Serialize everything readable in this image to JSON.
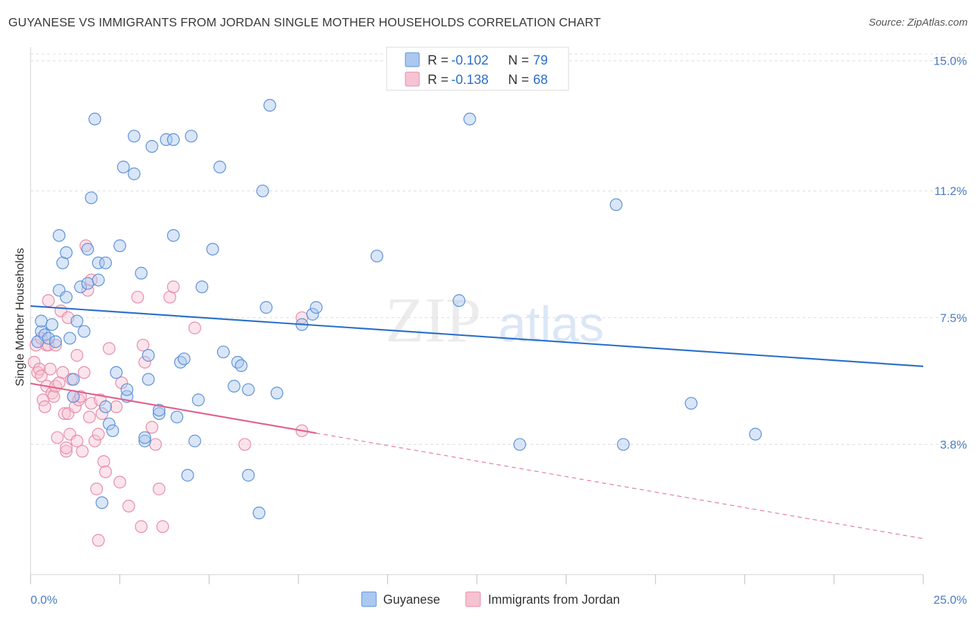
{
  "title": "GUYANESE VS IMMIGRANTS FROM JORDAN SINGLE MOTHER HOUSEHOLDS CORRELATION CHART",
  "source": "Source: ZipAtlas.com",
  "watermark": {
    "zip": "ZIP",
    "atlas": "atlas"
  },
  "colors": {
    "blue_fill": "#aac8f0",
    "blue_stroke": "#5b8fd6",
    "blue_line": "#2a6fc9",
    "pink_fill": "#f6c3d3",
    "pink_stroke": "#e68aa8",
    "pink_line": "#e0608a",
    "tick_text": "#4a7cc7",
    "grid": "#dcdcdc"
  },
  "legend": {
    "rows": [
      {
        "r_label": "R = ",
        "r_value": "-0.102",
        "n_label": "N = ",
        "n_value": "79",
        "series": "blue"
      },
      {
        "r_label": "R = ",
        "r_value": "-0.138",
        "n_label": "N = ",
        "n_value": "68",
        "series": "pink"
      }
    ]
  },
  "chart_data": {
    "type": "scatter",
    "title": "GUYANESE VS IMMIGRANTS FROM JORDAN SINGLE MOTHER HOUSEHOLDS CORRELATION CHART",
    "xlabel": "",
    "ylabel": "Single Mother Households",
    "xlim": [
      0,
      25
    ],
    "ylim": [
      0,
      15.6
    ],
    "x_tick_labels": [
      "0.0%",
      "25.0%"
    ],
    "y_ticks": [
      3.8,
      7.5,
      11.2,
      15.0
    ],
    "y_tick_labels": [
      "3.8%",
      "7.5%",
      "11.2%",
      "15.0%"
    ],
    "grid": true,
    "legend": [
      "Guyanese",
      "Immigrants from Jordan"
    ],
    "series": [
      {
        "name": "Guyanese",
        "color": "blue",
        "trend": {
          "x": [
            0,
            25
          ],
          "y": [
            7.84,
            6.08
          ],
          "dashed_from": null
        },
        "points": [
          [
            0.2,
            6.8
          ],
          [
            0.3,
            7.1
          ],
          [
            0.3,
            7.4
          ],
          [
            0.4,
            7.0
          ],
          [
            0.5,
            6.9
          ],
          [
            0.6,
            7.3
          ],
          [
            0.7,
            6.8
          ],
          [
            0.8,
            8.3
          ],
          [
            0.8,
            9.9
          ],
          [
            0.9,
            9.1
          ],
          [
            1.0,
            8.1
          ],
          [
            1.0,
            9.4
          ],
          [
            1.1,
            6.9
          ],
          [
            1.2,
            5.7
          ],
          [
            1.2,
            5.2
          ],
          [
            1.3,
            7.4
          ],
          [
            1.4,
            8.4
          ],
          [
            1.5,
            7.1
          ],
          [
            1.6,
            9.5
          ],
          [
            1.6,
            8.5
          ],
          [
            1.7,
            11.0
          ],
          [
            1.8,
            13.3
          ],
          [
            1.9,
            8.6
          ],
          [
            1.9,
            9.1
          ],
          [
            2.0,
            2.1
          ],
          [
            2.1,
            9.1
          ],
          [
            2.1,
            4.9
          ],
          [
            2.2,
            4.4
          ],
          [
            2.3,
            4.2
          ],
          [
            2.4,
            5.9
          ],
          [
            2.5,
            9.6
          ],
          [
            2.6,
            11.9
          ],
          [
            2.7,
            5.2
          ],
          [
            2.7,
            5.4
          ],
          [
            2.9,
            11.7
          ],
          [
            2.9,
            12.8
          ],
          [
            3.1,
            8.8
          ],
          [
            3.2,
            3.9
          ],
          [
            3.2,
            4.0
          ],
          [
            3.3,
            6.4
          ],
          [
            3.3,
            5.7
          ],
          [
            3.4,
            12.5
          ],
          [
            3.6,
            4.7
          ],
          [
            3.6,
            4.8
          ],
          [
            3.8,
            12.7
          ],
          [
            4.0,
            9.9
          ],
          [
            4.0,
            12.7
          ],
          [
            4.1,
            4.6
          ],
          [
            4.2,
            6.2
          ],
          [
            4.3,
            6.3
          ],
          [
            4.4,
            2.9
          ],
          [
            4.5,
            12.8
          ],
          [
            4.6,
            3.9
          ],
          [
            4.7,
            5.1
          ],
          [
            4.8,
            8.4
          ],
          [
            5.1,
            9.5
          ],
          [
            5.3,
            11.9
          ],
          [
            5.4,
            6.5
          ],
          [
            5.7,
            5.5
          ],
          [
            5.8,
            6.2
          ],
          [
            5.9,
            6.1
          ],
          [
            6.1,
            2.9
          ],
          [
            6.1,
            5.4
          ],
          [
            6.4,
            1.8
          ],
          [
            6.5,
            11.2
          ],
          [
            6.6,
            7.8
          ],
          [
            6.7,
            13.7
          ],
          [
            6.9,
            5.3
          ],
          [
            7.6,
            7.3
          ],
          [
            7.9,
            7.6
          ],
          [
            8.0,
            7.8
          ],
          [
            9.7,
            9.3
          ],
          [
            12.0,
            8.0
          ],
          [
            12.3,
            13.3
          ],
          [
            13.7,
            3.8
          ],
          [
            16.4,
            10.8
          ],
          [
            16.6,
            3.8
          ],
          [
            18.5,
            5.0
          ],
          [
            20.3,
            4.1
          ]
        ]
      },
      {
        "name": "Immigrants from Jordan",
        "color": "pink",
        "trend": {
          "x": [
            0,
            25
          ],
          "y": [
            5.58,
            1.05
          ],
          "dashed_from": 8.0
        },
        "points": [
          [
            0.1,
            6.2
          ],
          [
            0.15,
            6.7
          ],
          [
            0.2,
            5.9
          ],
          [
            0.25,
            6.0
          ],
          [
            0.3,
            6.9
          ],
          [
            0.3,
            5.8
          ],
          [
            0.35,
            5.1
          ],
          [
            0.4,
            4.9
          ],
          [
            0.45,
            6.7
          ],
          [
            0.45,
            5.5
          ],
          [
            0.5,
            8.0
          ],
          [
            0.5,
            6.7
          ],
          [
            0.55,
            6.0
          ],
          [
            0.6,
            5.3
          ],
          [
            0.65,
            5.2
          ],
          [
            0.7,
            6.7
          ],
          [
            0.7,
            5.5
          ],
          [
            0.75,
            4.0
          ],
          [
            0.8,
            5.6
          ],
          [
            0.85,
            7.7
          ],
          [
            0.9,
            5.9
          ],
          [
            0.95,
            4.7
          ],
          [
            1.0,
            3.6
          ],
          [
            1.0,
            3.7
          ],
          [
            1.05,
            7.5
          ],
          [
            1.05,
            4.7
          ],
          [
            1.1,
            4.1
          ],
          [
            1.15,
            5.7
          ],
          [
            1.2,
            5.2
          ],
          [
            1.25,
            4.9
          ],
          [
            1.3,
            3.9
          ],
          [
            1.3,
            6.4
          ],
          [
            1.35,
            5.1
          ],
          [
            1.4,
            5.2
          ],
          [
            1.45,
            3.6
          ],
          [
            1.5,
            5.9
          ],
          [
            1.55,
            9.6
          ],
          [
            1.6,
            8.3
          ],
          [
            1.65,
            4.6
          ],
          [
            1.7,
            5.0
          ],
          [
            1.7,
            8.6
          ],
          [
            1.8,
            3.9
          ],
          [
            1.85,
            2.5
          ],
          [
            1.9,
            4.1
          ],
          [
            1.9,
            1.0
          ],
          [
            1.95,
            5.1
          ],
          [
            2.0,
            4.7
          ],
          [
            2.05,
            3.3
          ],
          [
            2.1,
            3.0
          ],
          [
            2.2,
            6.6
          ],
          [
            2.4,
            4.9
          ],
          [
            2.5,
            2.7
          ],
          [
            2.55,
            5.6
          ],
          [
            2.75,
            2.0
          ],
          [
            3.0,
            8.1
          ],
          [
            3.1,
            1.4
          ],
          [
            3.15,
            6.7
          ],
          [
            3.2,
            6.2
          ],
          [
            3.4,
            4.3
          ],
          [
            3.5,
            3.8
          ],
          [
            3.6,
            2.5
          ],
          [
            3.7,
            1.4
          ],
          [
            3.9,
            8.1
          ],
          [
            4.0,
            8.4
          ],
          [
            4.6,
            7.2
          ],
          [
            6.0,
            3.8
          ],
          [
            7.6,
            7.5
          ],
          [
            7.6,
            4.2
          ]
        ]
      }
    ]
  }
}
